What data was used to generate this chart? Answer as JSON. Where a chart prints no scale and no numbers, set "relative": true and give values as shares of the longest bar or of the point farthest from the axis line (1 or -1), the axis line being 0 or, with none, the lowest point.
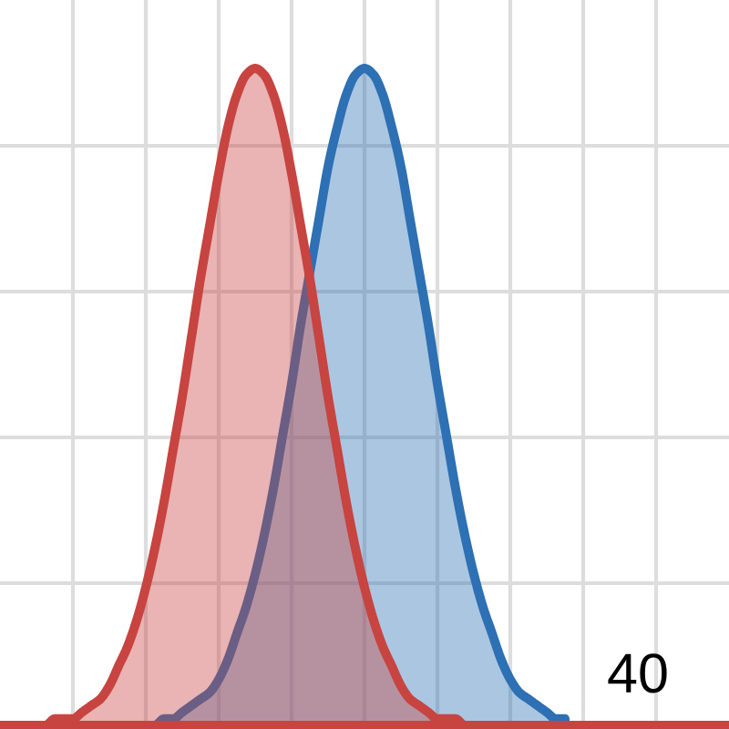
{
  "chart_data": {
    "type": "area",
    "relative": true,
    "grid": true,
    "categories": [
      null,
      null,
      null,
      null,
      null,
      null,
      null,
      null,
      null,
      null,
      null,
      null,
      null,
      null,
      null,
      null,
      null,
      null,
      null,
      null,
      null,
      null,
      null,
      null,
      null,
      null,
      null,
      null,
      null,
      null,
      null,
      null,
      null,
      null,
      null,
      null,
      null,
      null,
      null,
      null,
      null,
      null,
      null,
      null,
      null,
      null,
      null,
      null,
      null,
      null,
      null,
      null,
      null,
      null,
      null,
      null,
      null,
      null,
      null,
      null,
      null,
      null,
      null,
      null,
      null,
      null,
      null,
      null,
      null,
      null,
      null,
      null,
      null,
      null,
      null,
      null,
      null,
      null,
      null,
      null,
      null
    ],
    "series": [
      {
        "color": "#2d70b3",
        "values": [
          null,
          null,
          null,
          null,
          null,
          null,
          0,
          0,
          0,
          0,
          0,
          0,
          0,
          0,
          0,
          0,
          0,
          0,
          0.01,
          0.01,
          0.02,
          0.03,
          0.04,
          0.05,
          0.07,
          0.1,
          0.14,
          0.18,
          0.23,
          0.29,
          0.36,
          0.44,
          0.52,
          0.61,
          0.69,
          0.77,
          0.85,
          0.91,
          0.96,
          0.99,
          1,
          0.99,
          0.96,
          0.91,
          0.85,
          0.77,
          0.69,
          0.61,
          0.52,
          0.44,
          0.36,
          0.29,
          0.23,
          0.18,
          0.14,
          0.1,
          0.07,
          0.05,
          0.04,
          0.03,
          0.02,
          0.01,
          0.01,
          null,
          null,
          null,
          null,
          null,
          null,
          null,
          null,
          null,
          null,
          null,
          null,
          null,
          null,
          null,
          null,
          null,
          null
        ]
      },
      {
        "color": "#c74440",
        "values": [
          0,
          0,
          0,
          0,
          0,
          0,
          0.01,
          0.01,
          0.01,
          0.02,
          0.03,
          0.04,
          0.06,
          0.09,
          0.12,
          0.16,
          0.21,
          0.27,
          0.34,
          0.42,
          0.5,
          0.59,
          0.68,
          0.76,
          0.84,
          0.91,
          0.96,
          0.99,
          1,
          0.99,
          0.96,
          0.91,
          0.84,
          0.76,
          0.68,
          0.59,
          0.5,
          0.42,
          0.34,
          0.27,
          0.21,
          0.16,
          0.12,
          0.09,
          0.06,
          0.04,
          0.03,
          0.02,
          0.01,
          0.01,
          0.01,
          0,
          0,
          0,
          0,
          0,
          0,
          0,
          0,
          0,
          0,
          0,
          0,
          0,
          0,
          0,
          0,
          0,
          0,
          0,
          0,
          0,
          0,
          0,
          0,
          0,
          0,
          0,
          0,
          0,
          0
        ]
      }
    ],
    "annotations": [
      "40"
    ]
  }
}
